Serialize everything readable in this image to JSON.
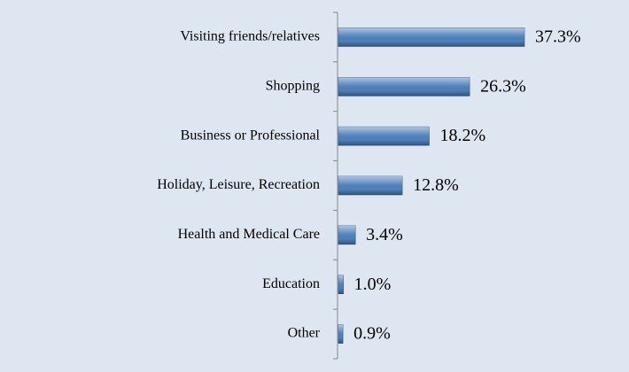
{
  "chart_data": {
    "type": "bar",
    "orientation": "horizontal",
    "categories": [
      "Visiting friends/relatives",
      "Shopping",
      "Business or Professional",
      "Holiday, Leisure, Recreation",
      "Health and Medical Care",
      "Education",
      "Other"
    ],
    "values": [
      37.3,
      26.3,
      18.2,
      12.8,
      3.4,
      1.0,
      0.9
    ],
    "value_labels": [
      "37.3%",
      "26.3%",
      "18.2%",
      "12.8%",
      "3.4%",
      "1.0%",
      "0.9%"
    ],
    "color": "#4f81bd"
  }
}
